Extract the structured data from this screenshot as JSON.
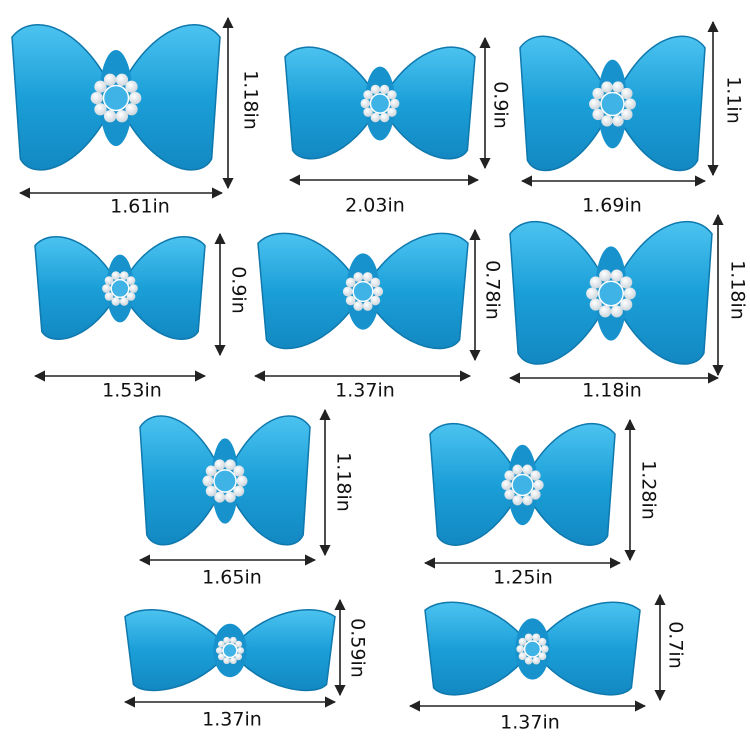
{
  "bows": [
    {
      "width": "1.61in",
      "height": "1.18in"
    },
    {
      "width": "2.03in",
      "height": "0.9in"
    },
    {
      "width": "1.69in",
      "height": "1.1in"
    },
    {
      "width": "1.53in",
      "height": "0.9in"
    },
    {
      "width": "1.37in",
      "height": "0.78in"
    },
    {
      "width": "1.18in",
      "height": "1.18in"
    },
    {
      "width": "1.65in",
      "height": "1.18in"
    },
    {
      "width": "1.25in",
      "height": "1.28in"
    },
    {
      "width": "1.37in",
      "height": "0.59in"
    },
    {
      "width": "1.37in",
      "height": "0.7in"
    }
  ]
}
